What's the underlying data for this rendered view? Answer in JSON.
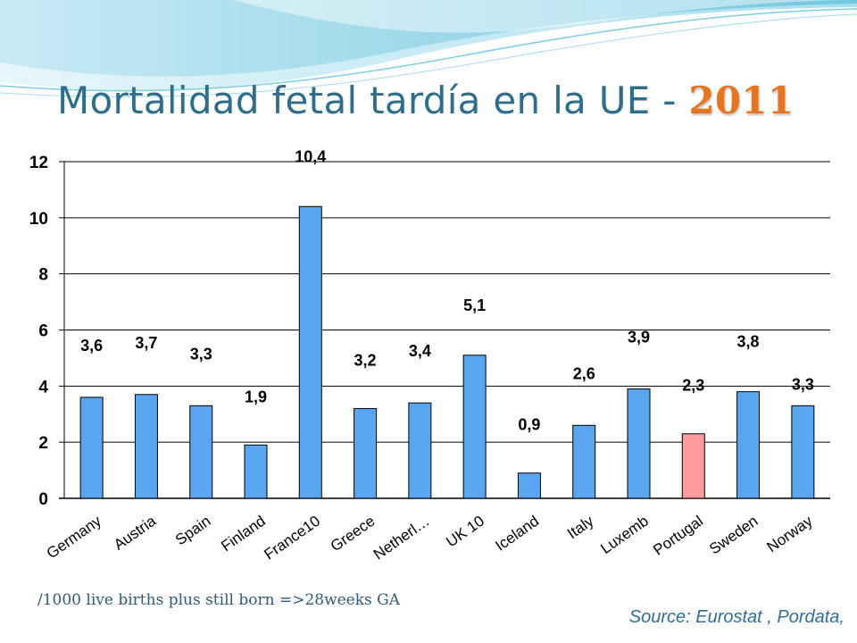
{
  "title": {
    "main": "Mortalidad fetal tardía en la UE - ",
    "year": "2011"
  },
  "footnote": "/1000 live births plus still born =>28weeks GA",
  "source": "Source: Eurostat , Pordata,",
  "colors": {
    "bar": "#5aa5f0",
    "highlight": "#ff9a9a",
    "title": "#2b6e8e",
    "year": "#e8741e"
  },
  "chart_data": {
    "type": "bar",
    "categories": [
      "Germany",
      "Austria",
      "Spain",
      "Finland",
      "France10",
      "Greece",
      "Netherl…",
      "UK 10",
      "Iceland",
      "Italy",
      "Luxemb",
      "Portugal",
      "Sweden",
      "Norway"
    ],
    "values": [
      3.6,
      3.7,
      3.3,
      1.9,
      10.4,
      3.2,
      3.4,
      5.1,
      0.9,
      2.6,
      3.9,
      2.3,
      3.8,
      3.3
    ],
    "data_labels": [
      "3,6",
      "3,7",
      "3,3",
      "1,9",
      "10,4",
      "3,2",
      "3,4",
      "5,1",
      "0,9",
      "2,6",
      "3,9",
      "2,3",
      "3,8",
      "3,3"
    ],
    "highlight_category": "Portugal",
    "ylim": [
      0,
      12
    ],
    "yticks": [
      0,
      2,
      4,
      6,
      8,
      10,
      12
    ],
    "grid": true,
    "legend": "none",
    "xlabel": "",
    "ylabel": ""
  }
}
